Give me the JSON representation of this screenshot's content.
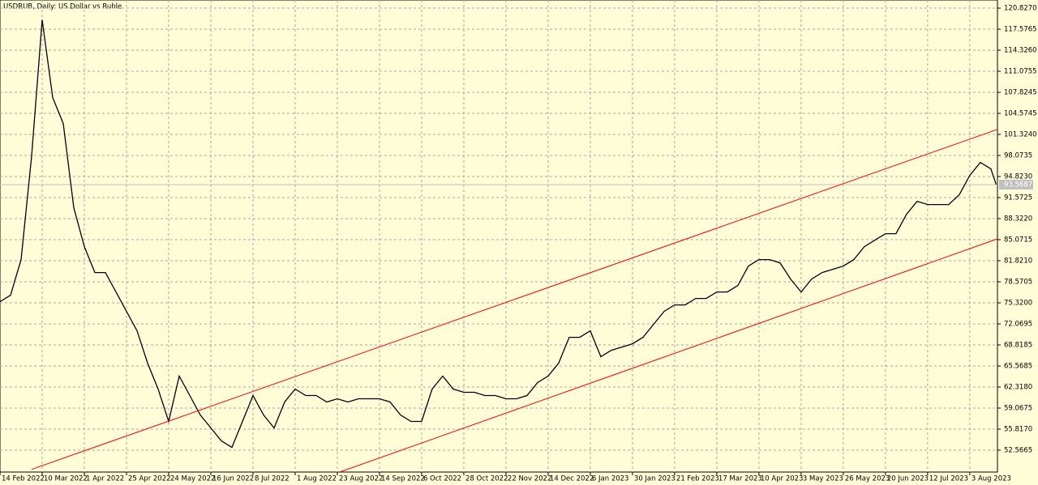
{
  "chart_data": {
    "type": "line",
    "title": "USDRUB, Daily:  US Dollar vs Ruble",
    "xlim": [
      0,
      378.5
    ],
    "ylim": [
      49.19,
      122.08
    ],
    "grid": true,
    "x": [
      0,
      4,
      8,
      12,
      16,
      20,
      24,
      28,
      32,
      36,
      40,
      44,
      48,
      52,
      56,
      60,
      64,
      68,
      72,
      76,
      80,
      84,
      88,
      92,
      96,
      100,
      104,
      108,
      112,
      116,
      120,
      124,
      128,
      132,
      136,
      140,
      144,
      148,
      152,
      156,
      160,
      164,
      168,
      172,
      176,
      180,
      184,
      188,
      192,
      196,
      200,
      204,
      208,
      212,
      216,
      220,
      224,
      228,
      232,
      236,
      240,
      244,
      248,
      252,
      256,
      260,
      264,
      268,
      272,
      276,
      280,
      284,
      288,
      292,
      296,
      300,
      304,
      308,
      312,
      316,
      320,
      324,
      328,
      332,
      336,
      340,
      344,
      348,
      352,
      356,
      360,
      364,
      368,
      372,
      376,
      378
    ],
    "series": [
      {
        "color": "#000000",
        "values": [
          75.5,
          76.5,
          82,
          98,
          119,
          107,
          103,
          90,
          84,
          80,
          80,
          77,
          74,
          71,
          66,
          62,
          57,
          64,
          61,
          58,
          56,
          54,
          53,
          57,
          61,
          58,
          56,
          60,
          62,
          61,
          61,
          60,
          60.5,
          60,
          60.5,
          60.5,
          60.5,
          60,
          58,
          57,
          57,
          62,
          64,
          62,
          61.5,
          61.5,
          61,
          61,
          60.5,
          60.5,
          61,
          63,
          64,
          66,
          70,
          70,
          71,
          67,
          68,
          68.5,
          69,
          70,
          72,
          74,
          75,
          75,
          76,
          76,
          77,
          77,
          78,
          81,
          82,
          82,
          81.5,
          79,
          77,
          79,
          80,
          80.5,
          81,
          82,
          84,
          85,
          86,
          86,
          89,
          91,
          90.5,
          90.5,
          90.5,
          92,
          95,
          97,
          96,
          93.6
        ]
      }
    ],
    "channel": [
      {
        "color": "#ff0000",
        "x": [
          12,
          378.5
        ],
        "values": [
          49.6,
          102.1
        ]
      },
      {
        "color": "#ff0000",
        "x": [
          129,
          378.5
        ],
        "values": [
          49.2,
          85.2
        ]
      }
    ],
    "current_price": {
      "value": 93.5687,
      "label": "93.5687"
    },
    "yticks": [
      {
        "value": 120.827,
        "label": "120.8270"
      },
      {
        "value": 117.5765,
        "label": "117.5765"
      },
      {
        "value": 114.326,
        "label": "114.3260"
      },
      {
        "value": 111.0755,
        "label": "111.0755"
      },
      {
        "value": 107.8245,
        "label": "107.8245"
      },
      {
        "value": 104.5745,
        "label": "104.5745"
      },
      {
        "value": 101.324,
        "label": "101.3240"
      },
      {
        "value": 98.0735,
        "label": "98.0735"
      },
      {
        "value": 94.823,
        "label": "94.8230"
      },
      {
        "value": 91.5725,
        "label": "91.5725"
      },
      {
        "value": 88.322,
        "label": "88.3220"
      },
      {
        "value": 85.0715,
        "label": "85.0715"
      },
      {
        "value": 81.821,
        "label": "81.8210"
      },
      {
        "value": 78.5705,
        "label": "78.5705"
      },
      {
        "value": 75.32,
        "label": "75.3200"
      },
      {
        "value": 72.0695,
        "label": "72.0695"
      },
      {
        "value": 68.8185,
        "label": "68.8185"
      },
      {
        "value": 65.5685,
        "label": "65.5685"
      },
      {
        "value": 62.318,
        "label": "62.3180"
      },
      {
        "value": 59.0675,
        "label": "59.0675"
      },
      {
        "value": 55.817,
        "label": "55.8170"
      },
      {
        "value": 52.5665,
        "label": "52.5665"
      }
    ],
    "xticks": [
      {
        "value": 0,
        "label": "14 Feb 2022"
      },
      {
        "value": 16,
        "label": "10 Mar 2022"
      },
      {
        "value": 32,
        "label": "1 Apr 2022"
      },
      {
        "value": 48,
        "label": "25 Apr 2022"
      },
      {
        "value": 64,
        "label": "24 May 2022"
      },
      {
        "value": 80,
        "label": "16 Jun 2022"
      },
      {
        "value": 96,
        "label": "8 Jul 2022"
      },
      {
        "value": 112,
        "label": "1 Aug 2022"
      },
      {
        "value": 128,
        "label": "23 Aug 2022"
      },
      {
        "value": 144,
        "label": "14 Sep 2022"
      },
      {
        "value": 160,
        "label": "6 Oct 2022"
      },
      {
        "value": 176,
        "label": "28 Oct 2022"
      },
      {
        "value": 192,
        "label": "22 Nov 2022"
      },
      {
        "value": 208,
        "label": "14 Dec 2022"
      },
      {
        "value": 224,
        "label": "6 Jan 2023"
      },
      {
        "value": 240,
        "label": "30 Jan 2023"
      },
      {
        "value": 256,
        "label": "21 Feb 2023"
      },
      {
        "value": 272,
        "label": "17 Mar 2023"
      },
      {
        "value": 288,
        "label": "10 Apr 2023"
      },
      {
        "value": 304,
        "label": "3 May 2023"
      },
      {
        "value": 320,
        "label": "26 May 2023"
      },
      {
        "value": 336,
        "label": "20 Jun 2023"
      },
      {
        "value": 352,
        "label": "12 Jul 2023"
      },
      {
        "value": 368,
        "label": "3 Aug 2023"
      }
    ]
  }
}
